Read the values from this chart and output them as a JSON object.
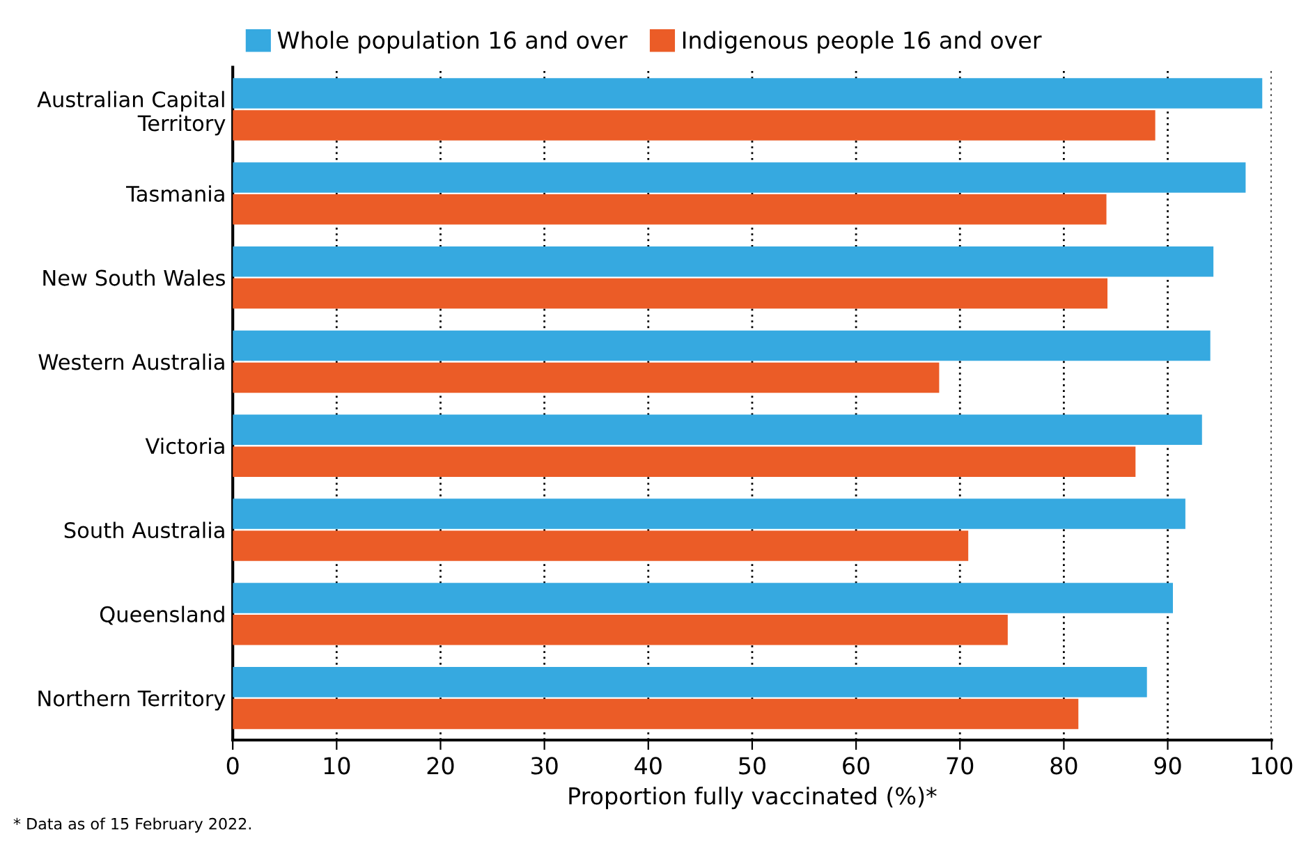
{
  "chart_data": {
    "type": "bar",
    "orientation": "horizontal",
    "categories": [
      "Australian Capital\nTerritory",
      "Tasmania",
      "New South Wales",
      "Western Australia",
      "Victoria",
      "South Australia",
      "Queensland",
      "Northern Territory"
    ],
    "series": [
      {
        "name": "Whole population 16 and over",
        "color": "#36a9e0",
        "values": [
          99.1,
          97.5,
          94.4,
          94.1,
          93.3,
          91.7,
          90.5,
          88.0
        ]
      },
      {
        "name": "Indigenous people 16 and over",
        "color": "#eb5c27",
        "values": [
          88.8,
          84.1,
          84.2,
          68.0,
          86.9,
          70.8,
          74.6,
          81.4
        ]
      }
    ],
    "xlabel": "Proportion fully vaccinated (%)*",
    "xlim": [
      0,
      100
    ],
    "xticks": [
      0,
      10,
      20,
      30,
      40,
      50,
      60,
      70,
      80,
      90,
      100
    ],
    "grid": "x",
    "legend": "top left",
    "annotations": [
      "* Data as of 15 February 2022."
    ]
  }
}
